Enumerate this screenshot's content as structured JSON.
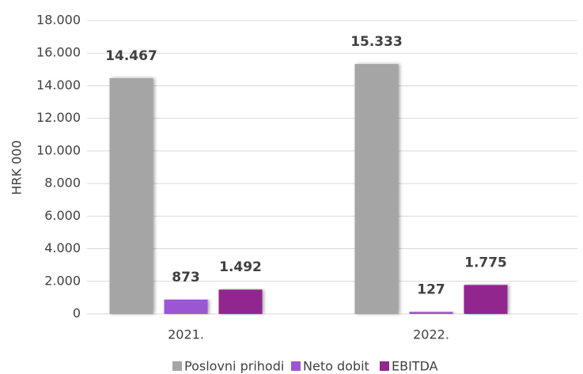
{
  "chart_data": {
    "type": "bar",
    "y_label": "HRK 000",
    "categories": [
      "2021.",
      "2022."
    ],
    "series": [
      {
        "name": "Poslovni prihodi",
        "color": "#a5a5a5",
        "values": [
          14467,
          15333
        ],
        "value_labels": [
          "14.467",
          "15.333"
        ]
      },
      {
        "name": "Neto dobit",
        "color": "#9b57d3",
        "values": [
          873,
          127
        ],
        "value_labels": [
          "873",
          "127"
        ]
      },
      {
        "name": "EBITDA",
        "color": "#92278f",
        "values": [
          1492,
          1775
        ],
        "value_labels": [
          "1.492",
          "1.775"
        ]
      }
    ],
    "ylim": [
      0,
      18000
    ],
    "yticks": [
      0,
      {
        "value": 2000,
        "label": "2.000"
      },
      {
        "value": 4000,
        "label": "4.000"
      },
      {
        "value": 6000,
        "label": "6.000"
      },
      {
        "value": 8000,
        "label": "8.000"
      },
      {
        "value": 10000,
        "label": "10.000"
      },
      {
        "value": 12000,
        "label": "12.000"
      },
      {
        "value": 14000,
        "label": "14.000"
      },
      {
        "value": 16000,
        "label": "16.000"
      },
      {
        "value": 18000,
        "label": "18.000"
      }
    ],
    "grid": true,
    "legend": "bottom"
  }
}
